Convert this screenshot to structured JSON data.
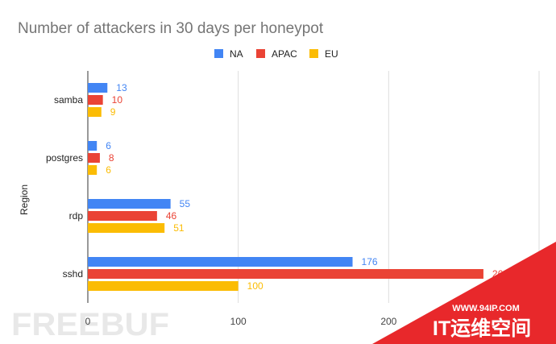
{
  "chart_data": {
    "type": "bar",
    "orientation": "horizontal",
    "title": "Number of attackers in 30 days per honeypot",
    "ylabel": "Region",
    "xlabel": "",
    "categories": [
      "samba",
      "postgres",
      "rdp",
      "sshd"
    ],
    "series": [
      {
        "name": "NA",
        "color": "#4285f4",
        "values": [
          13,
          6,
          55,
          176
        ]
      },
      {
        "name": "APAC",
        "color": "#ea4335",
        "values": [
          10,
          8,
          46,
          263
        ]
      },
      {
        "name": "EU",
        "color": "#fbbc04",
        "values": [
          9,
          6,
          51,
          100
        ]
      }
    ],
    "xlim": [
      0,
      300
    ],
    "xticks": [
      0,
      100,
      200,
      300
    ],
    "xtick_labels": [
      "0",
      "100",
      "200",
      ""
    ],
    "grid": true,
    "legend_position": "top"
  },
  "data_labels": [
    [
      "13",
      "10",
      "9"
    ],
    [
      "6",
      "8",
      "6"
    ],
    [
      "55",
      "46",
      "51"
    ],
    [
      "176",
      "263",
      "100"
    ]
  ],
  "watermark": {
    "left_logo": "FREEBUF",
    "right_url": "WWW.94IP.COM",
    "right_title": "IT运维空间",
    "banner_color": "#e8282b"
  }
}
